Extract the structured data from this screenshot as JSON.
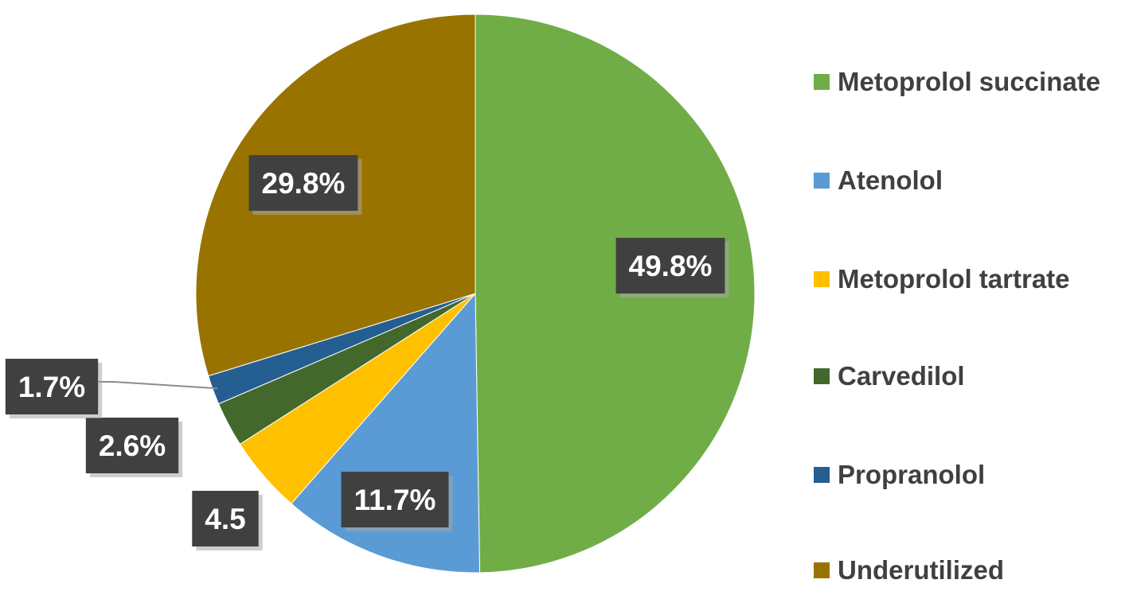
{
  "chart_data": {
    "type": "pie",
    "title": "",
    "slices": [
      {
        "name": "Metoprolol succinate",
        "value": 49.8,
        "label": "49.8%",
        "color": "#70AD47"
      },
      {
        "name": "Atenolol",
        "value": 11.7,
        "label": "11.7%",
        "color": "#5B9BD5"
      },
      {
        "name": "Metoprolol tartrate",
        "value": 4.5,
        "label": "4.5",
        "color": "#FFC000"
      },
      {
        "name": "Carvedilol",
        "value": 2.6,
        "label": "2.6%",
        "color": "#43682B"
      },
      {
        "name": "Propranolol",
        "value": 1.7,
        "label": "1.7%",
        "color": "#255E91"
      },
      {
        "name": "Underutilized",
        "value": 29.8,
        "label": "29.8%",
        "color": "#997300"
      }
    ],
    "start_angle": "12 o'clock",
    "direction": "clockwise",
    "legend_position": "right",
    "data_label_style": "white bold text on dark grey boxes"
  }
}
